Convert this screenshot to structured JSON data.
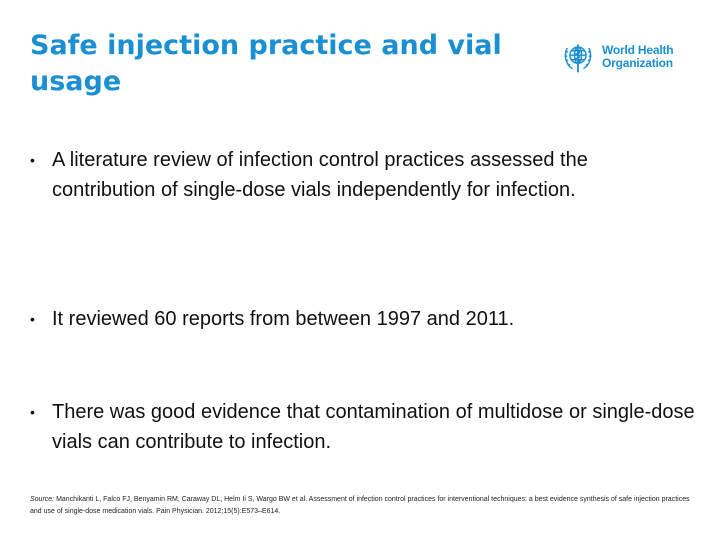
{
  "slide": {
    "title": "Safe injection practice and vial usage",
    "logo": {
      "line1": "World Health",
      "line2": "Organization",
      "icon": "who-emblem-icon",
      "color": "#1a8fd2"
    },
    "bullets": [
      "A literature review of infection control practices assessed the contribution of single-dose vials independently for infection.",
      "It reviewed 60 reports from between 1997 and 2011.",
      "There was good evidence that contamination of multidose or single-dose vials can contribute to infection."
    ],
    "source": {
      "label": "Source:",
      "text": " Manchikanti L, Falco FJ, Benyamin RM, Caraway DL, Helm Ii S, Wargo BW et al. Assessment of infection control practices for interventional techniques: a best evidence synthesis of safe injection practices and use of single-dose medication vials. Pain Physician. 2012;15(5):E573–E614."
    },
    "colors": {
      "accent": "#1a8fd2",
      "text": "#111111"
    }
  }
}
